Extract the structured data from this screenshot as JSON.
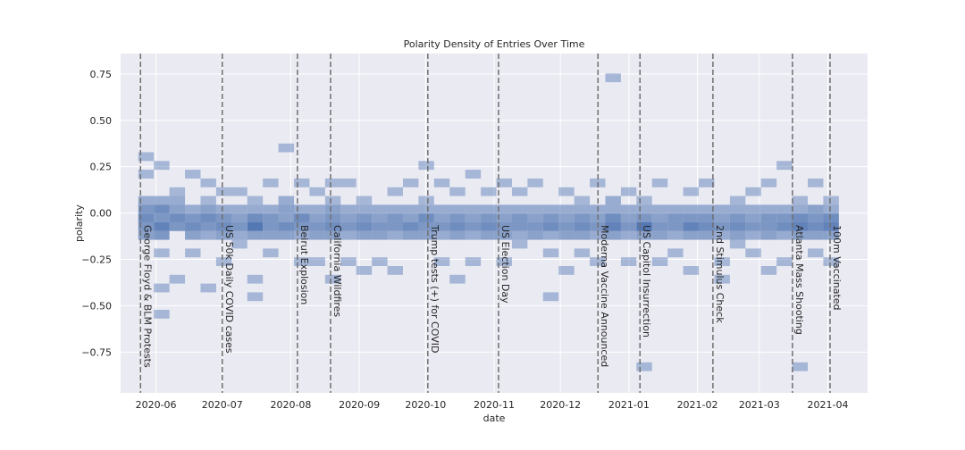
{
  "chart_data": {
    "type": "heatmap",
    "title": "Polarity Density of Entries Over Time",
    "xlabel": "date",
    "ylabel": "polarity",
    "x_range": [
      "2020-05-16",
      "2021-04-19"
    ],
    "ylim": [
      -0.97,
      0.86
    ],
    "x_ticks": [
      "2020-06",
      "2020-07",
      "2020-08",
      "2020-09",
      "2020-10",
      "2020-11",
      "2020-12",
      "2021-01",
      "2021-02",
      "2021-03",
      "2021-04"
    ],
    "y_ticks": [
      0.75,
      0.5,
      0.25,
      0.0,
      -0.25,
      -0.5,
      -0.75
    ],
    "y_tick_labels": [
      "0.75",
      "0.50",
      "0.25",
      "0.00",
      "−0.25",
      "−0.50",
      "−0.75"
    ],
    "grid": true,
    "colors": {
      "background": "#EAEAF2",
      "grid": "#FFFFFF",
      "cell": "#4C72B0",
      "event_line": "#707070"
    },
    "events": [
      {
        "date": "2020-05-25",
        "label": "George Floyd & BLM Protests"
      },
      {
        "date": "2020-07-01",
        "label": "US 50k Daily COVID cases"
      },
      {
        "date": "2020-08-04",
        "label": "Beirut Explosion"
      },
      {
        "date": "2020-08-19",
        "label": "California Wildfires"
      },
      {
        "date": "2020-10-02",
        "label": "Trump tests (+) for COVID"
      },
      {
        "date": "2020-11-03",
        "label": "US Election Day"
      },
      {
        "date": "2020-12-18",
        "label": "Moderna Vaccine Announced"
      },
      {
        "date": "2021-01-06",
        "label": "US Capitol Insurrection"
      },
      {
        "date": "2021-02-08",
        "label": "2nd Stimulus Check"
      },
      {
        "date": "2021-03-16",
        "label": "Atlanta Mass Shooting"
      },
      {
        "date": "2021-04-02",
        "label": "100m Vaccinated"
      }
    ],
    "density": {
      "x_bins": 45,
      "x_start": "2020-05-24",
      "x_end": "2021-04-06",
      "y_bins": 36,
      "y_start": -0.9,
      "y_end": 0.8,
      "points": [
        [
          0,
          16,
          3
        ],
        [
          0,
          17,
          4
        ],
        [
          0,
          18,
          5
        ],
        [
          0,
          19,
          4
        ],
        [
          0,
          20,
          2
        ],
        [
          0,
          23,
          1
        ],
        [
          0,
          25,
          1
        ],
        [
          1,
          16,
          4
        ],
        [
          1,
          17,
          6
        ],
        [
          1,
          18,
          4
        ],
        [
          1,
          19,
          5
        ],
        [
          1,
          20,
          2
        ],
        [
          1,
          14,
          1
        ],
        [
          1,
          10,
          1
        ],
        [
          1,
          7,
          1
        ],
        [
          1,
          24,
          1
        ],
        [
          2,
          17,
          4
        ],
        [
          2,
          18,
          5
        ],
        [
          2,
          19,
          3
        ],
        [
          2,
          20,
          2
        ],
        [
          2,
          21,
          1
        ],
        [
          2,
          11,
          1
        ],
        [
          3,
          17,
          5
        ],
        [
          3,
          18,
          4
        ],
        [
          3,
          16,
          3
        ],
        [
          3,
          19,
          2
        ],
        [
          3,
          14,
          1
        ],
        [
          3,
          23,
          1
        ],
        [
          4,
          17,
          4
        ],
        [
          4,
          18,
          5
        ],
        [
          4,
          19,
          3
        ],
        [
          4,
          16,
          2
        ],
        [
          4,
          20,
          1
        ],
        [
          4,
          22,
          1
        ],
        [
          4,
          10,
          1
        ],
        [
          5,
          17,
          5
        ],
        [
          5,
          18,
          4
        ],
        [
          5,
          16,
          3
        ],
        [
          5,
          19,
          2
        ],
        [
          5,
          13,
          1
        ],
        [
          5,
          21,
          1
        ],
        [
          6,
          17,
          4
        ],
        [
          6,
          18,
          3
        ],
        [
          6,
          16,
          2
        ],
        [
          6,
          19,
          2
        ],
        [
          6,
          21,
          1
        ],
        [
          6,
          15,
          1
        ],
        [
          7,
          17,
          7
        ],
        [
          7,
          18,
          5
        ],
        [
          7,
          16,
          3
        ],
        [
          7,
          19,
          2
        ],
        [
          7,
          11,
          1
        ],
        [
          7,
          9,
          1
        ],
        [
          7,
          20,
          1
        ],
        [
          8,
          17,
          4
        ],
        [
          8,
          18,
          4
        ],
        [
          8,
          16,
          3
        ],
        [
          8,
          19,
          2
        ],
        [
          8,
          14,
          1
        ],
        [
          8,
          22,
          1
        ],
        [
          9,
          17,
          5
        ],
        [
          9,
          18,
          3
        ],
        [
          9,
          16,
          3
        ],
        [
          9,
          19,
          3
        ],
        [
          9,
          20,
          2
        ],
        [
          9,
          26,
          1
        ],
        [
          10,
          17,
          4
        ],
        [
          10,
          18,
          5
        ],
        [
          10,
          16,
          2
        ],
        [
          10,
          19,
          2
        ],
        [
          10,
          13,
          1
        ],
        [
          10,
          22,
          1
        ],
        [
          11,
          17,
          4
        ],
        [
          11,
          18,
          3
        ],
        [
          11,
          16,
          3
        ],
        [
          11,
          19,
          2
        ],
        [
          11,
          21,
          1
        ],
        [
          11,
          13,
          1
        ],
        [
          12,
          17,
          5
        ],
        [
          12,
          18,
          4
        ],
        [
          12,
          16,
          3
        ],
        [
          12,
          19,
          3
        ],
        [
          12,
          11,
          1
        ],
        [
          12,
          20,
          1
        ],
        [
          12,
          22,
          1
        ],
        [
          13,
          17,
          4
        ],
        [
          13,
          18,
          3
        ],
        [
          13,
          16,
          2
        ],
        [
          13,
          19,
          2
        ],
        [
          13,
          13,
          1
        ],
        [
          13,
          22,
          1
        ],
        [
          14,
          17,
          5
        ],
        [
          14,
          18,
          4
        ],
        [
          14,
          16,
          3
        ],
        [
          14,
          19,
          2
        ],
        [
          14,
          20,
          1
        ],
        [
          14,
          12,
          1
        ],
        [
          15,
          17,
          4
        ],
        [
          15,
          18,
          3
        ],
        [
          15,
          16,
          3
        ],
        [
          15,
          19,
          2
        ],
        [
          15,
          13,
          1
        ],
        [
          16,
          17,
          4
        ],
        [
          16,
          18,
          4
        ],
        [
          16,
          16,
          2
        ],
        [
          16,
          19,
          2
        ],
        [
          16,
          12,
          1
        ],
        [
          16,
          21,
          1
        ],
        [
          17,
          17,
          5
        ],
        [
          17,
          18,
          3
        ],
        [
          17,
          16,
          3
        ],
        [
          17,
          19,
          2
        ],
        [
          17,
          22,
          1
        ],
        [
          18,
          17,
          4
        ],
        [
          18,
          18,
          5
        ],
        [
          18,
          16,
          3
        ],
        [
          18,
          19,
          2
        ],
        [
          18,
          20,
          1
        ],
        [
          18,
          24,
          1
        ],
        [
          19,
          17,
          4
        ],
        [
          19,
          18,
          3
        ],
        [
          19,
          16,
          2
        ],
        [
          19,
          19,
          2
        ],
        [
          19,
          13,
          1
        ],
        [
          19,
          22,
          1
        ],
        [
          20,
          17,
          5
        ],
        [
          20,
          18,
          4
        ],
        [
          20,
          16,
          3
        ],
        [
          20,
          19,
          2
        ],
        [
          20,
          21,
          1
        ],
        [
          20,
          11,
          1
        ],
        [
          21,
          17,
          4
        ],
        [
          21,
          18,
          3
        ],
        [
          21,
          16,
          2
        ],
        [
          21,
          19,
          2
        ],
        [
          21,
          13,
          1
        ],
        [
          21,
          23,
          1
        ],
        [
          22,
          17,
          5
        ],
        [
          22,
          18,
          4
        ],
        [
          22,
          16,
          3
        ],
        [
          22,
          19,
          2
        ],
        [
          22,
          21,
          1
        ],
        [
          23,
          17,
          4
        ],
        [
          23,
          18,
          3
        ],
        [
          23,
          16,
          3
        ],
        [
          23,
          19,
          2
        ],
        [
          23,
          13,
          1
        ],
        [
          23,
          22,
          1
        ],
        [
          24,
          17,
          4
        ],
        [
          24,
          18,
          4
        ],
        [
          24,
          16,
          2
        ],
        [
          24,
          19,
          2
        ],
        [
          24,
          15,
          1
        ],
        [
          24,
          21,
          1
        ],
        [
          25,
          17,
          4
        ],
        [
          25,
          18,
          3
        ],
        [
          25,
          16,
          3
        ],
        [
          25,
          19,
          2
        ],
        [
          25,
          22,
          1
        ],
        [
          26,
          17,
          5
        ],
        [
          26,
          18,
          4
        ],
        [
          26,
          16,
          2
        ],
        [
          26,
          19,
          2
        ],
        [
          26,
          14,
          1
        ],
        [
          26,
          9,
          1
        ],
        [
          27,
          17,
          4
        ],
        [
          27,
          18,
          3
        ],
        [
          27,
          16,
          3
        ],
        [
          27,
          19,
          2
        ],
        [
          27,
          12,
          1
        ],
        [
          27,
          21,
          1
        ],
        [
          28,
          17,
          5
        ],
        [
          28,
          18,
          4
        ],
        [
          28,
          16,
          3
        ],
        [
          28,
          19,
          2
        ],
        [
          28,
          14,
          1
        ],
        [
          28,
          20,
          1
        ],
        [
          29,
          17,
          4
        ],
        [
          29,
          18,
          3
        ],
        [
          29,
          16,
          2
        ],
        [
          29,
          19,
          2
        ],
        [
          29,
          13,
          1
        ],
        [
          29,
          22,
          1
        ],
        [
          30,
          17,
          6
        ],
        [
          30,
          18,
          5
        ],
        [
          30,
          16,
          3
        ],
        [
          30,
          19,
          2
        ],
        [
          30,
          20,
          2
        ],
        [
          30,
          34,
          1
        ],
        [
          31,
          17,
          4
        ],
        [
          31,
          18,
          3
        ],
        [
          31,
          16,
          2
        ],
        [
          31,
          19,
          2
        ],
        [
          31,
          13,
          1
        ],
        [
          31,
          21,
          1
        ],
        [
          32,
          17,
          7
        ],
        [
          32,
          18,
          4
        ],
        [
          32,
          16,
          3
        ],
        [
          32,
          19,
          2
        ],
        [
          32,
          1,
          1
        ],
        [
          32,
          20,
          1
        ],
        [
          33,
          17,
          4
        ],
        [
          33,
          18,
          3
        ],
        [
          33,
          16,
          3
        ],
        [
          33,
          19,
          2
        ],
        [
          33,
          13,
          1
        ],
        [
          33,
          22,
          1
        ],
        [
          34,
          17,
          4
        ],
        [
          34,
          18,
          4
        ],
        [
          34,
          16,
          2
        ],
        [
          34,
          19,
          2
        ],
        [
          34,
          14,
          1
        ],
        [
          35,
          17,
          6
        ],
        [
          35,
          18,
          4
        ],
        [
          35,
          16,
          3
        ],
        [
          35,
          19,
          2
        ],
        [
          35,
          21,
          1
        ],
        [
          35,
          12,
          1
        ],
        [
          36,
          17,
          5
        ],
        [
          36,
          18,
          4
        ],
        [
          36,
          16,
          3
        ],
        [
          36,
          19,
          2
        ],
        [
          36,
          22,
          1
        ],
        [
          37,
          17,
          4
        ],
        [
          37,
          18,
          3
        ],
        [
          37,
          16,
          2
        ],
        [
          37,
          19,
          2
        ],
        [
          37,
          13,
          1
        ],
        [
          37,
          11,
          1
        ],
        [
          38,
          17,
          5
        ],
        [
          38,
          18,
          4
        ],
        [
          38,
          16,
          3
        ],
        [
          38,
          19,
          2
        ],
        [
          38,
          15,
          1
        ],
        [
          38,
          20,
          1
        ],
        [
          39,
          17,
          4
        ],
        [
          39,
          18,
          3
        ],
        [
          39,
          16,
          2
        ],
        [
          39,
          19,
          2
        ],
        [
          39,
          14,
          1
        ],
        [
          39,
          21,
          1
        ],
        [
          40,
          17,
          4
        ],
        [
          40,
          18,
          4
        ],
        [
          40,
          16,
          3
        ],
        [
          40,
          19,
          2
        ],
        [
          40,
          12,
          1
        ],
        [
          40,
          22,
          1
        ],
        [
          41,
          17,
          5
        ],
        [
          41,
          18,
          4
        ],
        [
          41,
          16,
          2
        ],
        [
          41,
          19,
          2
        ],
        [
          41,
          13,
          1
        ],
        [
          41,
          24,
          1
        ],
        [
          42,
          17,
          6
        ],
        [
          42,
          18,
          5
        ],
        [
          42,
          16,
          3
        ],
        [
          42,
          19,
          2
        ],
        [
          42,
          20,
          1
        ],
        [
          42,
          1,
          1
        ],
        [
          43,
          17,
          5
        ],
        [
          43,
          18,
          4
        ],
        [
          43,
          16,
          3
        ],
        [
          43,
          19,
          3
        ],
        [
          43,
          14,
          1
        ],
        [
          43,
          22,
          1
        ],
        [
          44,
          17,
          6
        ],
        [
          44,
          18,
          5
        ],
        [
          44,
          16,
          3
        ],
        [
          44,
          19,
          2
        ],
        [
          44,
          20,
          1
        ],
        [
          44,
          13,
          1
        ]
      ]
    }
  }
}
